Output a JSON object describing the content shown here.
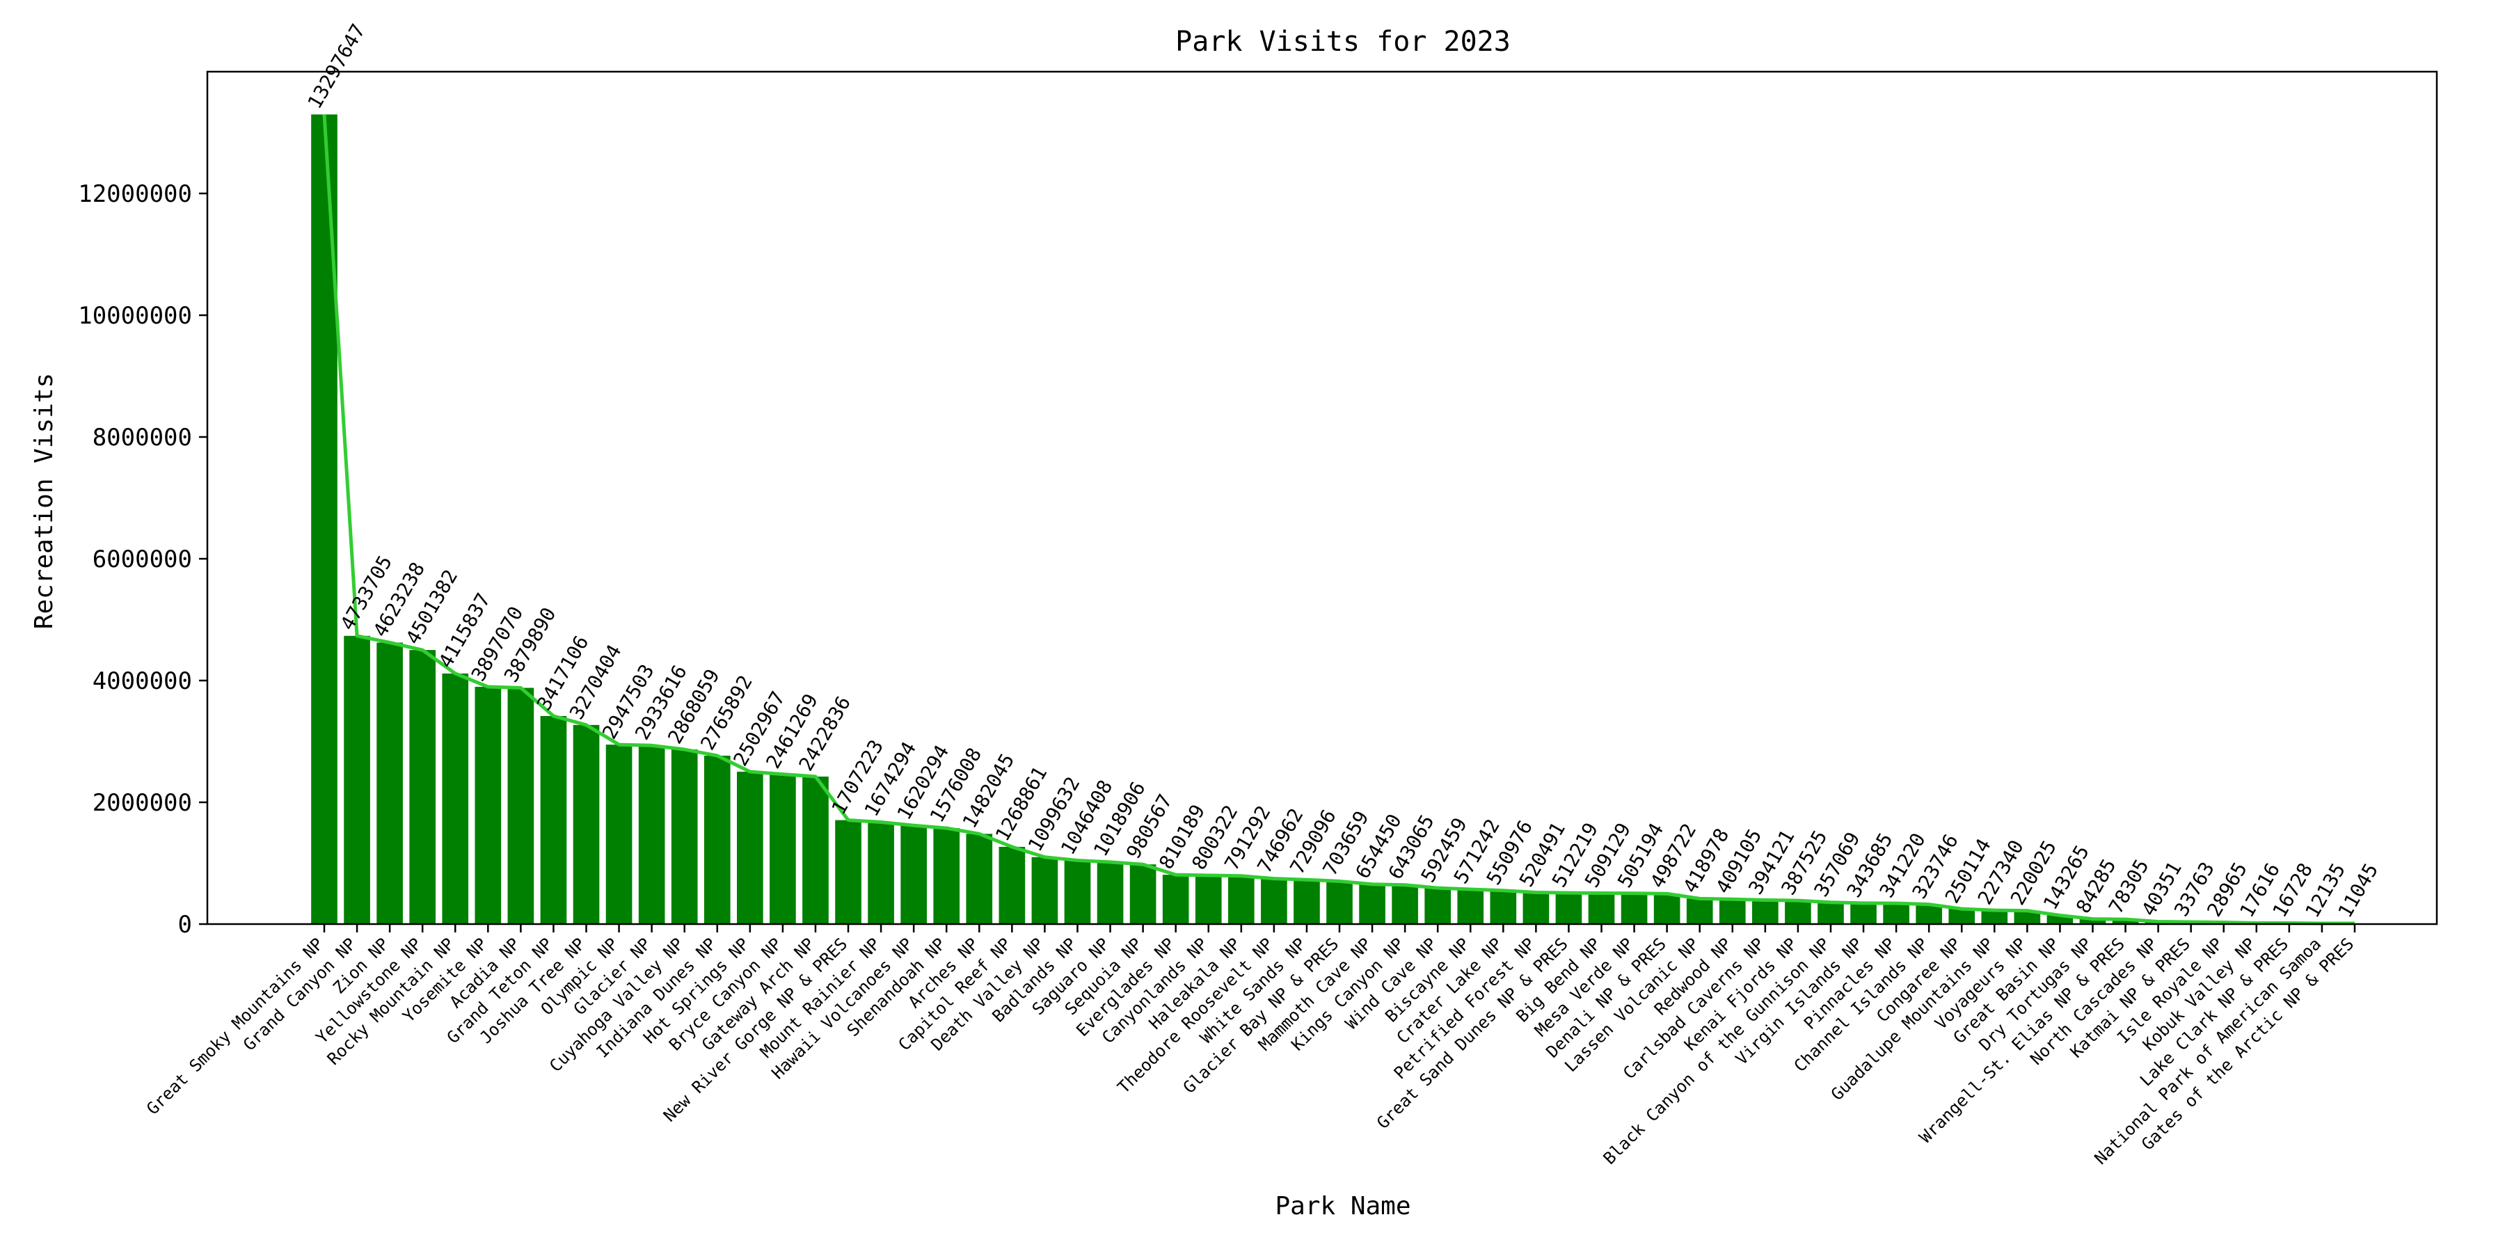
{
  "chart_data": {
    "type": "bar",
    "title": "Park Visits for 2023",
    "xlabel": "Park Name",
    "ylabel": "Recreation Visits",
    "ylim": [
      0,
      14000000
    ],
    "yticks": [
      0,
      2000000,
      4000000,
      6000000,
      8000000,
      10000000,
      12000000
    ],
    "grid": false,
    "bar_color": "#008000",
    "line_color": "#32cd32",
    "categories": [
      "Great Smoky Mountains NP",
      "Grand Canyon NP",
      "Zion NP",
      "Yellowstone NP",
      "Rocky Mountain NP",
      "Yosemite NP",
      "Acadia NP",
      "Grand Teton NP",
      "Joshua Tree NP",
      "Olympic NP",
      "Glacier NP",
      "Cuyahoga Valley NP",
      "Indiana Dunes NP",
      "Hot Springs NP",
      "Bryce Canyon NP",
      "Gateway Arch NP",
      "New River Gorge NP & PRES",
      "Mount Rainier NP",
      "Hawaii Volcanoes NP",
      "Shenandoah NP",
      "Arches NP",
      "Capitol Reef NP",
      "Death Valley NP",
      "Badlands NP",
      "Saguaro NP",
      "Sequoia NP",
      "Everglades NP",
      "Canyonlands NP",
      "Haleakala NP",
      "Theodore Roosevelt NP",
      "White Sands NP",
      "Glacier Bay NP & PRES",
      "Mammoth Cave NP",
      "Kings Canyon NP",
      "Wind Cave NP",
      "Biscayne NP",
      "Crater Lake NP",
      "Petrified Forest NP",
      "Great Sand Dunes NP & PRES",
      "Big Bend NP",
      "Mesa Verde NP",
      "Denali NP & PRES",
      "Lassen Volcanic NP",
      "Redwood NP",
      "Carlsbad Caverns NP",
      "Kenai Fjords NP",
      "Black Canyon of the Gunnison NP",
      "Virgin Islands NP",
      "Pinnacles NP",
      "Channel Islands NP",
      "Congaree NP",
      "Guadalupe Mountains NP",
      "Voyageurs NP",
      "Great Basin NP",
      "Dry Tortugas NP",
      "Wrangell-St. Elias NP & PRES",
      "North Cascades NP",
      "Katmai NP & PRES",
      "Isle Royale NP",
      "Kobuk Valley NP",
      "Lake Clark NP & PRES",
      "National Park of American Samoa",
      "Gates of the Arctic NP & PRES"
    ],
    "value_labels": [
      "13297647",
      "4733705",
      "4623238",
      "4501382",
      "4115837",
      "3897070",
      "3879890",
      "3417106",
      "3270404",
      "2947503",
      "2933616",
      "2868059",
      "2765892",
      "2502967",
      "2461269",
      "2422836",
      "1707223",
      "1674294",
      "1620294",
      "1576008",
      "1482045",
      "1268861",
      "1099632",
      "1046408",
      "1018906",
      "980567",
      "810189",
      "800322",
      "791292",
      "746962",
      "729096",
      "703659",
      "654450",
      "643065",
      "592459",
      "571242",
      "550976",
      "520491",
      "512219",
      "509129",
      "505194",
      "498722",
      "418978",
      "409105",
      "394121",
      "387525",
      "357069",
      "343685",
      "341220",
      "323746",
      "250114",
      "227340",
      "220025",
      "143265",
      "84285",
      "78305",
      "40351",
      "33763",
      "28965",
      "17616",
      "16728",
      "12135",
      "11045"
    ],
    "values": [
      13297647,
      4733705,
      4623238,
      4501382,
      4115837,
      3897070,
      3879890,
      3417106,
      3270404,
      2947503,
      2933616,
      2868059,
      2765892,
      2502967,
      2461269,
      2422836,
      1707223,
      1674294,
      1620294,
      1576008,
      1482045,
      1268861,
      1099632,
      1046408,
      1018906,
      980567,
      810189,
      800322,
      791292,
      746962,
      729096,
      703659,
      654450,
      643065,
      592459,
      571242,
      550976,
      520491,
      512219,
      509129,
      505194,
      498722,
      418978,
      409105,
      394121,
      387525,
      357069,
      343685,
      341220,
      323746,
      250114,
      227340,
      220025,
      143265,
      84285,
      78305,
      40351,
      33763,
      28965,
      17616,
      16728,
      12135,
      11045
    ]
  }
}
